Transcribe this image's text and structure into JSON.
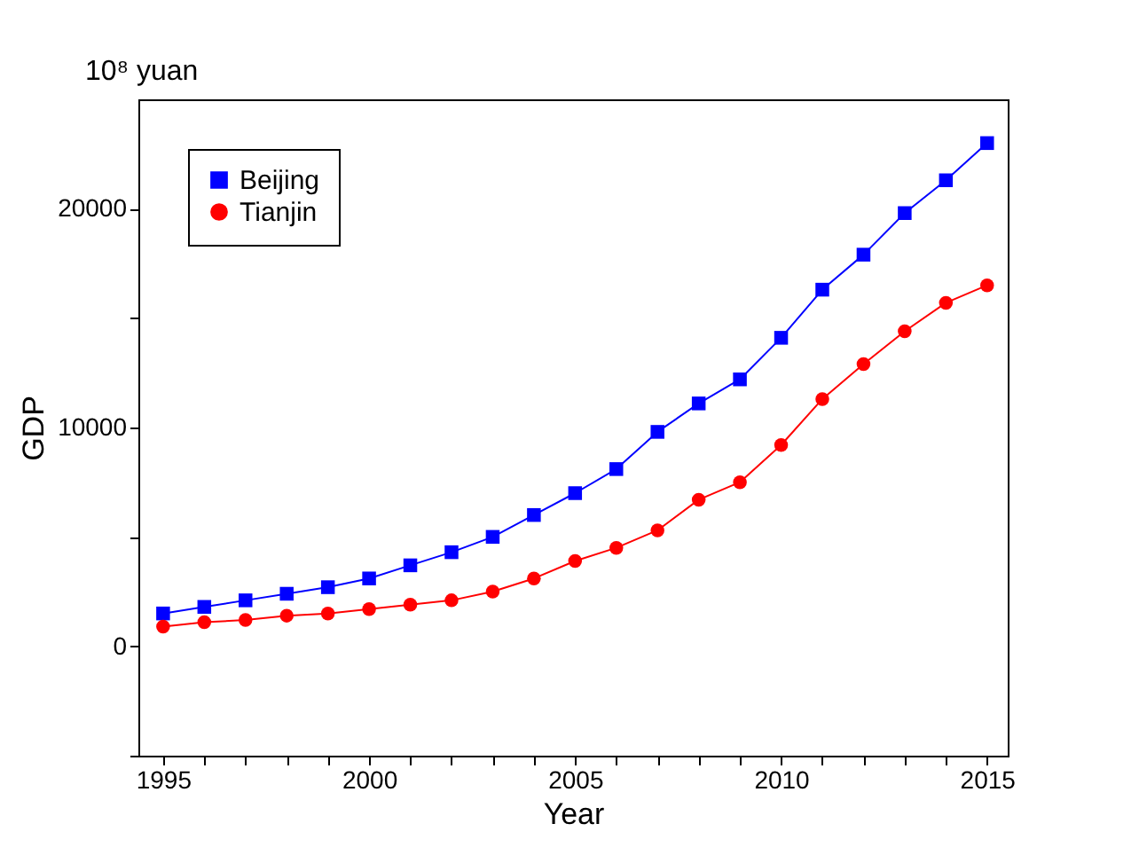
{
  "chart_data": {
    "type": "line",
    "xlabel": "Year",
    "ylabel": "GDP",
    "annotations": [
      "10⁸ yuan"
    ],
    "x": [
      1995,
      1996,
      1997,
      1998,
      1999,
      2000,
      2001,
      2002,
      2003,
      2004,
      2005,
      2006,
      2007,
      2008,
      2009,
      2010,
      2011,
      2012,
      2013,
      2014,
      2015
    ],
    "series": [
      {
        "name": "Beijing",
        "color": "#0000ff",
        "marker": "square",
        "values": [
          1500,
          1800,
          2100,
          2400,
          2700,
          3100,
          3700,
          4300,
          5000,
          6000,
          7000,
          8100,
          9800,
          11100,
          12200,
          14100,
          16300,
          17900,
          19800,
          21300,
          23000
        ]
      },
      {
        "name": "Tianjin",
        "color": "#ff0000",
        "marker": "circle",
        "values": [
          900,
          1100,
          1200,
          1400,
          1500,
          1700,
          1900,
          2100,
          2500,
          3100,
          3900,
          4500,
          5300,
          6700,
          7500,
          9200,
          11300,
          12900,
          14400,
          15700,
          16500
        ]
      }
    ],
    "xlim": [
      1994.4,
      2015.5
    ],
    "xticks": [
      1995,
      {
        "value": 1996,
        "label": null
      },
      {
        "value": 1997,
        "label": null
      },
      {
        "value": 1998,
        "label": null
      },
      {
        "value": 1999,
        "label": null
      },
      2000,
      {
        "value": 2001,
        "label": null
      },
      {
        "value": 2002,
        "label": null
      },
      {
        "value": 2003,
        "label": null
      },
      {
        "value": 2004,
        "label": null
      },
      2005,
      {
        "value": 2006,
        "label": null
      },
      {
        "value": 2007,
        "label": null
      },
      {
        "value": 2008,
        "label": null
      },
      {
        "value": 2009,
        "label": null
      },
      2010,
      {
        "value": 2011,
        "label": null
      },
      {
        "value": 2012,
        "label": null
      },
      {
        "value": 2013,
        "label": null
      },
      {
        "value": 2014,
        "label": null
      },
      2015
    ],
    "ylim": [
      -5000,
      25000
    ],
    "yticks": [
      {
        "value": -5000,
        "label": null
      },
      0,
      {
        "value": 5000,
        "label": null
      },
      10000,
      {
        "value": 15000,
        "label": null
      },
      20000
    ],
    "grid": false,
    "legend": "top left",
    "line_style": "solid"
  }
}
